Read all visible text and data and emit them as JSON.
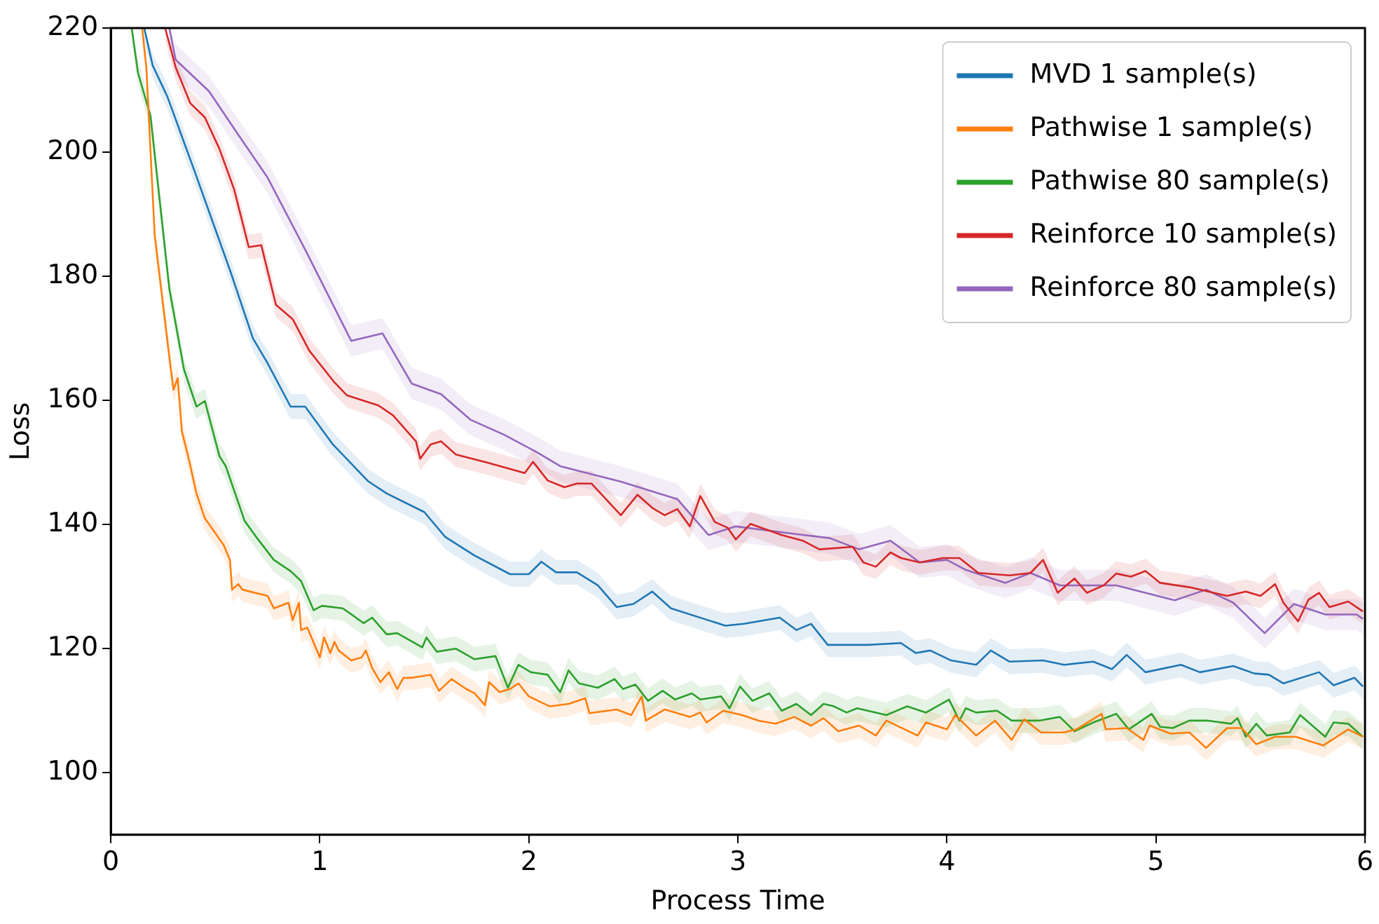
{
  "chart_data": {
    "type": "line",
    "xlabel": "Process Time",
    "ylabel": "Loss",
    "xlim": [
      0,
      6
    ],
    "xticks": [
      0,
      1,
      2,
      3,
      4,
      5,
      6
    ],
    "ylim": [
      90,
      220
    ],
    "yticks": [
      100,
      120,
      140,
      160,
      180,
      200,
      220
    ],
    "grid": false,
    "legend": "top right",
    "marker": "none",
    "line_style": "solid",
    "series": [
      {
        "name": "MVD 1 sample(s)",
        "color": "#1f77b4",
        "x": [
          0.16,
          0.2,
          0.27,
          0.4,
          0.57,
          0.68,
          0.75,
          0.86,
          0.93,
          1.06,
          1.23,
          1.32,
          1.5,
          1.6,
          1.74,
          1.91,
          2.0,
          2.06,
          2.13,
          2.23,
          2.33,
          2.42,
          2.5,
          2.59,
          2.68,
          2.94,
          3.03,
          3.2,
          3.28,
          3.35,
          3.43,
          3.62,
          3.78,
          3.85,
          3.92,
          4.02,
          4.14,
          4.21,
          4.3,
          4.46,
          4.56,
          4.7,
          4.79,
          4.86,
          4.95,
          5.12,
          5.21,
          5.37,
          5.47,
          5.54,
          5.61,
          5.78,
          5.85,
          5.95,
          5.99
        ],
        "values": [
          220,
          214,
          209,
          197,
          181,
          170,
          166,
          159,
          159,
          153,
          147,
          145,
          142,
          138,
          135,
          132,
          132,
          134,
          132.3,
          132.3,
          130.2,
          126.7,
          127.2,
          129.2,
          126.5,
          123.7,
          124,
          125,
          123,
          124,
          120.6,
          120.6,
          120.9,
          119.3,
          119.7,
          118.1,
          117.4,
          119.7,
          117.9,
          118.1,
          117.4,
          117.9,
          116.7,
          119,
          116.2,
          117.4,
          116.2,
          117.2,
          116,
          115.8,
          114.4,
          116.2,
          114.1,
          115.3,
          113.9
        ],
        "lower": [
          218,
          212,
          207,
          195,
          179,
          168,
          164,
          157,
          157,
          151,
          145,
          143,
          140,
          136,
          133,
          130,
          130,
          132,
          130.3,
          130.3,
          128.2,
          124.7,
          125.2,
          127.2,
          124.5,
          121.7,
          122,
          123,
          121,
          122,
          118.6,
          118.6,
          118.9,
          117.3,
          117.7,
          116.1,
          115.4,
          117.7,
          115.9,
          116.1,
          115.4,
          115.9,
          114.7,
          117,
          114.2,
          115.4,
          114.2,
          115.2,
          114,
          113.8,
          112.4,
          114.2,
          112.1,
          113.3,
          111.9
        ],
        "upper": [
          220,
          216,
          211,
          199,
          183,
          172,
          168,
          161,
          161,
          155,
          149,
          147,
          144,
          140,
          137,
          134,
          134,
          136,
          134.3,
          134.3,
          132.2,
          128.7,
          129.2,
          131.2,
          128.5,
          125.7,
          126,
          127,
          125,
          126,
          122.6,
          122.6,
          122.9,
          121.3,
          121.7,
          120.1,
          119.4,
          121.7,
          119.9,
          120.1,
          119.4,
          119.9,
          118.7,
          121,
          118.2,
          119.4,
          118.2,
          119.2,
          118,
          117.8,
          116.4,
          118.2,
          116.1,
          117.3,
          115.9
        ]
      },
      {
        "name": "Pathwise 1 sample(s)",
        "color": "#ff7f0e",
        "x": [
          0.15,
          0.17,
          0.21,
          0.28,
          0.3,
          0.32,
          0.34,
          0.37,
          0.41,
          0.45,
          0.54,
          0.57,
          0.58,
          0.61,
          0.63,
          0.75,
          0.78,
          0.85,
          0.87,
          0.9,
          0.91,
          0.94,
          1.0,
          1.02,
          1.05,
          1.07,
          1.09,
          1.15,
          1.2,
          1.22,
          1.25,
          1.29,
          1.33,
          1.37,
          1.4,
          1.44,
          1.53,
          1.57,
          1.63,
          1.7,
          1.74,
          1.79,
          1.81,
          1.86,
          1.91,
          1.95,
          2.0,
          2.1,
          2.19,
          2.27,
          2.29,
          2.42,
          2.49,
          2.54,
          2.56,
          2.65,
          2.77,
          2.82,
          2.85,
          2.93,
          3.02,
          3.1,
          3.18,
          3.27,
          3.35,
          3.41,
          3.48,
          3.58,
          3.66,
          3.71,
          3.86,
          3.9,
          4.0,
          4.04,
          4.14,
          4.23,
          4.31,
          4.37,
          4.45,
          4.56,
          4.62,
          4.74,
          4.76,
          4.86,
          4.94,
          4.97,
          5.07,
          5.16,
          5.24,
          5.34,
          5.41,
          5.48,
          5.57,
          5.67,
          5.8,
          5.92,
          5.99
        ],
        "values": [
          220,
          213.7,
          186.6,
          167,
          161.7,
          163.6,
          155,
          151,
          145,
          141,
          136.7,
          134.3,
          129.5,
          130.4,
          129.5,
          128.5,
          126.5,
          127.4,
          124.6,
          127.4,
          123,
          123.4,
          118.6,
          121.8,
          119.3,
          121.1,
          119.7,
          118.1,
          118.6,
          119.7,
          116.9,
          114.6,
          116.2,
          113.5,
          115.3,
          115.3,
          115.8,
          113.2,
          115.1,
          113.5,
          112.8,
          110.9,
          114.6,
          113,
          113.5,
          114.4,
          112.3,
          110.7,
          111.1,
          112,
          109.6,
          110.2,
          109.3,
          112.3,
          108.4,
          110.2,
          109,
          109.7,
          108.1,
          110,
          109.3,
          108.4,
          107.9,
          109,
          107.6,
          108.8,
          106.7,
          107.6,
          106,
          108.4,
          106,
          108.1,
          107,
          109.3,
          106,
          108.4,
          105.3,
          108.6,
          106.5,
          106.5,
          107,
          109.5,
          107,
          107.2,
          105.3,
          107.6,
          106.3,
          106.5,
          104,
          107.2,
          107.2,
          104.6,
          105.8,
          105.8,
          104.4,
          107,
          105.8
        ],
        "lower": [
          218,
          211.7,
          184.6,
          165,
          159.7,
          161.6,
          153,
          149,
          143,
          139,
          134.7,
          132.3,
          127.5,
          128.4,
          127.5,
          126.5,
          124.5,
          125.4,
          122.6,
          125.4,
          121,
          121.4,
          116.6,
          119.8,
          117.3,
          119.1,
          117.7,
          116.1,
          116.6,
          117.7,
          114.9,
          112.6,
          114.2,
          111.5,
          113.3,
          113.3,
          113.8,
          111.2,
          113.1,
          111.5,
          110.8,
          108.9,
          112.6,
          111,
          111.5,
          112.4,
          110.3,
          108.7,
          109.1,
          110,
          107.6,
          108.2,
          107.3,
          110.3,
          106.4,
          108.2,
          107,
          107.7,
          106.1,
          108,
          107.3,
          106.4,
          105.9,
          107,
          105.6,
          106.8,
          104.7,
          105.6,
          104,
          106.4,
          104,
          106.1,
          105,
          107.3,
          104,
          106.4,
          103.3,
          106.6,
          104.5,
          104.5,
          105,
          107.5,
          105,
          105.2,
          103.3,
          105.6,
          104.3,
          104.5,
          102,
          105.2,
          105.2,
          102.6,
          103.8,
          103.8,
          102.4,
          105,
          103.8
        ],
        "upper": [
          220,
          215.7,
          188.6,
          169,
          163.7,
          165.6,
          157,
          153,
          147,
          143,
          138.7,
          136.3,
          131.5,
          132.4,
          131.5,
          130.5,
          128.5,
          129.4,
          126.6,
          129.4,
          125,
          125.4,
          120.6,
          123.8,
          121.3,
          123.1,
          121.7,
          120.1,
          120.6,
          121.7,
          118.9,
          116.6,
          118.2,
          115.5,
          117.3,
          117.3,
          117.8,
          115.2,
          117.1,
          115.5,
          114.8,
          112.9,
          116.6,
          115,
          115.5,
          116.4,
          114.3,
          112.7,
          113.1,
          114,
          111.6,
          112.2,
          111.3,
          114.3,
          110.4,
          112.2,
          111,
          111.7,
          110.1,
          112,
          111.3,
          110.4,
          109.9,
          111,
          109.6,
          110.8,
          108.7,
          109.6,
          108,
          110.4,
          108,
          110.1,
          109,
          111.3,
          108,
          110.4,
          107.3,
          110.6,
          108.5,
          108.5,
          109,
          111.5,
          109,
          109.2,
          107.3,
          109.6,
          108.3,
          108.5,
          106,
          109.2,
          109.2,
          106.6,
          107.8,
          107.8,
          106.4,
          109,
          107.8
        ]
      },
      {
        "name": "Pathwise 80 sample(s)",
        "color": "#2ca02c",
        "x": [
          0.1,
          0.13,
          0.19,
          0.28,
          0.35,
          0.41,
          0.45,
          0.52,
          0.55,
          0.64,
          0.7,
          0.78,
          0.86,
          0.91,
          0.97,
          1.01,
          1.11,
          1.21,
          1.25,
          1.32,
          1.37,
          1.49,
          1.51,
          1.56,
          1.65,
          1.74,
          1.84,
          1.9,
          1.95,
          2.01,
          2.09,
          2.15,
          2.19,
          2.24,
          2.33,
          2.41,
          2.45,
          2.51,
          2.57,
          2.64,
          2.7,
          2.78,
          2.82,
          2.92,
          2.96,
          3.01,
          3.07,
          3.15,
          3.21,
          3.28,
          3.35,
          3.41,
          3.46,
          3.52,
          3.57,
          3.71,
          3.81,
          3.9,
          4.01,
          4.06,
          4.09,
          4.14,
          4.24,
          4.31,
          4.44,
          4.54,
          4.61,
          4.7,
          4.81,
          4.87,
          4.98,
          5.02,
          5.08,
          5.16,
          5.25,
          5.36,
          5.39,
          5.43,
          5.48,
          5.53,
          5.64,
          5.69,
          5.81,
          5.85,
          5.92,
          5.99
        ],
        "values": [
          220,
          212.8,
          205.8,
          178,
          165,
          159,
          159.9,
          151,
          149.4,
          140.6,
          137.8,
          134.3,
          132.5,
          130.9,
          126.2,
          126.9,
          126.5,
          124.1,
          125,
          122.3,
          122.5,
          120.2,
          121.8,
          119.5,
          120,
          118.3,
          118.8,
          113.7,
          117.4,
          116.2,
          115.8,
          113,
          116.5,
          114.4,
          113.7,
          115.1,
          113.5,
          114.2,
          111.6,
          113.2,
          111.8,
          112.8,
          111.8,
          112.3,
          110.4,
          113.9,
          111.6,
          112.8,
          110,
          111.1,
          109.3,
          111.1,
          110.7,
          109.7,
          110.4,
          109.3,
          110.7,
          109.7,
          111.8,
          108.4,
          110.4,
          109.7,
          110,
          108.4,
          108.4,
          109,
          106.7,
          108.1,
          109.5,
          107,
          109.5,
          107.4,
          107.2,
          108.4,
          108.4,
          107.9,
          108.8,
          105.8,
          107.9,
          106,
          106.5,
          109.3,
          105.8,
          108.1,
          107.9,
          105.8
        ],
        "lower": [
          218,
          210.8,
          203.8,
          176,
          163,
          157,
          157.9,
          149,
          147.4,
          138.6,
          135.8,
          132.3,
          130.5,
          128.9,
          124.2,
          124.9,
          124.5,
          122.1,
          123,
          120.3,
          120.5,
          118.2,
          119.8,
          117.5,
          118,
          116.3,
          116.8,
          111.7,
          115.4,
          114.2,
          113.8,
          111,
          114.5,
          112.4,
          111.7,
          113.1,
          111.5,
          112.2,
          109.6,
          111.2,
          109.8,
          110.8,
          109.8,
          110.3,
          108.4,
          111.9,
          109.6,
          110.8,
          108,
          109.1,
          107.3,
          109.1,
          108.7,
          107.7,
          108.4,
          107.3,
          108.7,
          107.7,
          109.8,
          106.4,
          108.4,
          107.7,
          108,
          106.4,
          106.4,
          107,
          104.7,
          106.1,
          107.5,
          105,
          107.5,
          105.4,
          105.2,
          106.4,
          106.4,
          105.9,
          106.8,
          103.8,
          105.9,
          104,
          104.5,
          107.3,
          103.8,
          106.1,
          105.9,
          103.8
        ],
        "upper": [
          220,
          214.8,
          207.8,
          180,
          167,
          161,
          161.9,
          153,
          151.4,
          142.6,
          139.8,
          136.3,
          134.5,
          132.9,
          128.2,
          128.9,
          128.5,
          126.1,
          127,
          124.3,
          124.5,
          122.2,
          123.8,
          121.5,
          122,
          120.3,
          120.8,
          115.7,
          119.4,
          118.2,
          117.8,
          115,
          118.5,
          116.4,
          115.7,
          117.1,
          115.5,
          116.2,
          113.6,
          115.2,
          113.8,
          114.8,
          113.8,
          114.3,
          112.4,
          115.9,
          113.6,
          114.8,
          112,
          113.1,
          111.3,
          113.1,
          112.7,
          111.7,
          112.4,
          111.3,
          112.7,
          111.7,
          113.8,
          110.4,
          112.4,
          111.7,
          112,
          110.4,
          110.4,
          111,
          108.7,
          110.1,
          111.5,
          109,
          111.5,
          109.4,
          109.2,
          110.4,
          110.4,
          109.9,
          110.8,
          107.8,
          109.9,
          108,
          108.5,
          111.3,
          107.8,
          110.1,
          109.9,
          107.8
        ]
      },
      {
        "name": "Reinforce 10 sample(s)",
        "color": "#d62728",
        "x": [
          0.26,
          0.31,
          0.38,
          0.45,
          0.52,
          0.59,
          0.66,
          0.72,
          0.79,
          0.87,
          0.95,
          1.07,
          1.13,
          1.28,
          1.35,
          1.46,
          1.48,
          1.53,
          1.58,
          1.65,
          1.8,
          1.98,
          2.02,
          2.09,
          2.17,
          2.23,
          2.3,
          2.44,
          2.52,
          2.59,
          2.65,
          2.71,
          2.77,
          2.82,
          2.89,
          2.95,
          2.99,
          3.06,
          3.21,
          3.31,
          3.39,
          3.55,
          3.6,
          3.66,
          3.73,
          3.78,
          3.87,
          3.98,
          4.06,
          4.15,
          4.3,
          4.4,
          4.46,
          4.53,
          4.61,
          4.67,
          4.75,
          4.81,
          4.88,
          4.95,
          5.02,
          5.16,
          5.25,
          5.34,
          5.43,
          5.5,
          5.57,
          5.61,
          5.68,
          5.73,
          5.78,
          5.83,
          5.92,
          5.99
        ],
        "values": [
          220,
          213.7,
          207.9,
          205.6,
          200.5,
          194,
          184.7,
          185,
          175.4,
          173.1,
          168,
          162.9,
          160.8,
          159.2,
          157.6,
          153.4,
          150.6,
          152.9,
          153.4,
          151.3,
          150,
          148.3,
          150.1,
          147.1,
          146,
          146.6,
          146.6,
          141.5,
          144.8,
          142.7,
          141.5,
          142.5,
          139.7,
          144.6,
          140.4,
          139.5,
          137.6,
          140.1,
          138.3,
          137.4,
          136,
          136.4,
          133.9,
          133.2,
          135.5,
          134.6,
          133.9,
          134.6,
          134.6,
          132.2,
          131.8,
          132.2,
          134.3,
          129,
          131.3,
          129,
          130.2,
          132.1,
          131.6,
          132.5,
          130.6,
          129.9,
          129.2,
          128.5,
          129.2,
          128.5,
          130.4,
          127.4,
          124.4,
          127.9,
          129,
          126.7,
          127.6,
          126
        ],
        "lower": [
          218,
          211.7,
          205.9,
          203.6,
          198.5,
          192,
          182.7,
          183,
          173.4,
          171.1,
          166,
          160.9,
          158.8,
          157.2,
          155.6,
          151.4,
          148.6,
          150.9,
          151.4,
          149.3,
          148,
          146.3,
          148.1,
          145.1,
          144,
          144.6,
          144.6,
          139.5,
          142.8,
          140.7,
          139.5,
          140.5,
          137.7,
          142.6,
          138.4,
          137.5,
          135.6,
          138.1,
          136.3,
          135.4,
          134,
          134.4,
          131.9,
          131.2,
          133.5,
          132.6,
          131.9,
          132.6,
          132.6,
          130.2,
          129.8,
          130.2,
          132.3,
          127,
          129.3,
          127,
          128.2,
          130.1,
          129.6,
          130.5,
          128.6,
          127.9,
          127.2,
          126.5,
          127.2,
          126.5,
          128.4,
          125.4,
          122.4,
          125.9,
          127,
          124.7,
          125.6,
          124
        ],
        "upper": [
          220,
          215.7,
          209.9,
          207.6,
          202.5,
          196,
          186.7,
          187,
          177.4,
          175.1,
          170,
          164.9,
          162.8,
          161.2,
          159.6,
          155.4,
          152.6,
          154.9,
          155.4,
          153.3,
          152,
          150.3,
          152.1,
          149.1,
          148,
          148.6,
          148.6,
          143.5,
          146.8,
          144.7,
          143.5,
          144.5,
          141.7,
          146.6,
          142.4,
          141.5,
          139.6,
          142.1,
          140.3,
          139.4,
          138,
          138.4,
          135.9,
          135.2,
          137.5,
          136.6,
          135.9,
          136.6,
          136.6,
          134.2,
          133.8,
          134.2,
          136.3,
          131,
          133.3,
          131,
          132.2,
          134.1,
          133.6,
          134.5,
          132.6,
          131.9,
          131.2,
          130.5,
          131.2,
          130.5,
          132.4,
          129.4,
          126.4,
          129.9,
          131,
          128.7,
          129.6,
          128
        ]
      },
      {
        "name": "Reinforce 80 sample(s)",
        "color": "#9467bd",
        "x": [
          0.28,
          0.31,
          0.47,
          0.61,
          0.75,
          0.93,
          1.15,
          1.3,
          1.44,
          1.58,
          1.72,
          1.88,
          2.03,
          2.15,
          2.44,
          2.71,
          2.86,
          2.99,
          3.27,
          3.44,
          3.58,
          3.73,
          3.87,
          4.0,
          4.09,
          4.28,
          4.4,
          4.54,
          4.81,
          5.09,
          5.24,
          5.37,
          5.52,
          5.66,
          5.81,
          5.96,
          5.99
        ],
        "values": [
          220,
          214.9,
          209.8,
          202.8,
          195.9,
          184.3,
          169.6,
          170.8,
          162.7,
          161,
          156.9,
          154.5,
          151.8,
          149.4,
          146.9,
          144.1,
          138.3,
          139.7,
          138.5,
          137.8,
          136,
          137.4,
          133.9,
          134.3,
          132.7,
          130.6,
          132.2,
          130.2,
          130.2,
          127.8,
          129.5,
          127.4,
          122.5,
          127.2,
          125.5,
          125.5,
          124.8
        ],
        "lower": [
          217.5,
          212.4,
          207.3,
          200.3,
          193.4,
          181.8,
          167.1,
          168.3,
          160.2,
          158.5,
          154.4,
          152,
          149.3,
          146.9,
          144.4,
          141.6,
          135.8,
          137.2,
          136,
          135.3,
          133.5,
          134.9,
          131.4,
          131.8,
          130.2,
          128.1,
          129.7,
          127.7,
          127.7,
          125.3,
          127,
          124.9,
          120,
          124.7,
          123,
          123,
          122.3
        ],
        "upper": [
          220,
          217.4,
          212.3,
          205.3,
          198.4,
          186.8,
          172.1,
          173.3,
          165.2,
          163.5,
          159.4,
          157,
          154.3,
          151.9,
          149.4,
          146.6,
          140.8,
          142.2,
          141,
          140.3,
          138.5,
          139.9,
          136.4,
          136.8,
          135.2,
          133.1,
          134.7,
          132.7,
          132.7,
          130.3,
          132,
          129.9,
          125,
          129.7,
          128,
          128,
          127.3
        ]
      }
    ]
  }
}
